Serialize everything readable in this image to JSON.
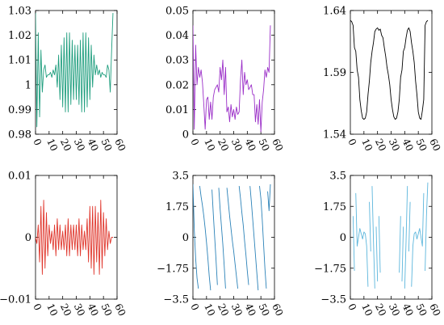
{
  "chart_data": [
    {
      "type": "line",
      "xlim": [
        0,
        60
      ],
      "ylim": [
        0.98,
        1.03
      ],
      "yticks": [
        "0.98",
        "0.99",
        "1",
        "1.01",
        "1.02",
        "1.03"
      ],
      "xticks": [
        "0",
        "10",
        "20",
        "30",
        "40",
        "50",
        "60"
      ],
      "series": [
        {
          "color": "#1f9e7e",
          "x": [
            0,
            1,
            2,
            3,
            4,
            5,
            6,
            7,
            8,
            9,
            10,
            11,
            12,
            13,
            14,
            15,
            16,
            17,
            18,
            19,
            20,
            21,
            22,
            23,
            24,
            25,
            26,
            27,
            28,
            29,
            30,
            31,
            32,
            33,
            34,
            35,
            36,
            37,
            38,
            39,
            40,
            41,
            42,
            43,
            44,
            45,
            46,
            47,
            48,
            49,
            50,
            51,
            52,
            53,
            54,
            55,
            56,
            57
          ],
          "values": [
            1.029,
            0.983,
            1.021,
            0.987,
            1.014,
            0.997,
            1.006,
            1.008,
            1.003,
            1.004,
            1.004,
            1.005,
            1.003,
            1.006,
            1.004,
            1.008,
            0.999,
            1.012,
            0.994,
            1.016,
            0.991,
            1.019,
            0.989,
            1.021,
            0.989,
            1.021,
            0.992,
            1.018,
            0.994,
            1.016,
            0.994,
            1.016,
            0.992,
            1.018,
            0.989,
            1.021,
            0.989,
            1.021,
            0.991,
            1.019,
            0.994,
            1.016,
            0.999,
            1.012,
            1.004,
            1.008,
            1.004,
            1.006,
            1.003,
            1.005,
            1.004,
            1.004,
            1.003,
            1.008,
            1.006,
            0.997,
            1.014,
            1.029
          ]
        }
      ]
    },
    {
      "type": "line",
      "xlim": [
        0,
        60
      ],
      "ylim": [
        0,
        0.05
      ],
      "yticks": [
        "0",
        "0.01",
        "0.02",
        "0.03",
        "0.04",
        "0.05"
      ],
      "xticks": [
        "0",
        "10",
        "20",
        "30",
        "40",
        "50",
        "60"
      ],
      "series": [
        {
          "color": "#9b2fc8",
          "x": [
            0,
            1,
            2,
            3,
            4,
            5,
            6,
            7,
            8,
            9,
            10,
            11,
            12,
            13,
            14,
            15,
            16,
            17,
            18,
            19,
            20,
            21,
            22,
            23,
            24,
            25,
            26,
            27,
            28,
            29,
            30,
            31,
            32,
            33,
            34,
            35,
            36,
            37,
            38,
            39,
            40,
            41,
            42,
            43,
            44,
            45,
            46,
            47,
            48,
            49,
            50,
            51,
            52,
            53,
            54,
            55,
            56,
            57
          ],
          "values": [
            0.044,
            0.002,
            0.036,
            0.02,
            0.027,
            0.023,
            0.026,
            0.021,
            0.012,
            0.002,
            0.014,
            0.015,
            0.006,
            0.013,
            0.006,
            0.015,
            0.018,
            0.019,
            0.02,
            0.017,
            0.027,
            0.022,
            0.03,
            0.016,
            0.027,
            0.009,
            0.011,
            0.005,
            0.012,
            0.007,
            0.01,
            0.006,
            0.011,
            0.008,
            0.009,
            0.022,
            0.03,
            0.016,
            0.025,
            0.02,
            0.022,
            0.018,
            0.019,
            0.02,
            0.016,
            0.016,
            0.005,
            0.012,
            0.004,
            0.014,
            0.001,
            0.013,
            0.018,
            0.026,
            0.023,
            0.027,
            0.025,
            0.044
          ]
        }
      ]
    },
    {
      "type": "line",
      "xlim": [
        0,
        60
      ],
      "ylim": [
        1.54,
        1.64
      ],
      "yticks": [
        "1.54",
        "1.59",
        "1.64"
      ],
      "xticks": [
        "0",
        "10",
        "20",
        "30",
        "40",
        "50",
        "60"
      ],
      "series": [
        {
          "color": "#000000",
          "x": [
            0,
            1,
            2,
            3,
            4,
            5,
            6,
            7,
            8,
            9,
            10,
            11,
            12,
            13,
            14,
            15,
            16,
            17,
            18,
            19,
            20,
            21,
            22,
            23,
            24,
            25,
            26,
            27,
            28,
            29,
            30,
            31,
            32,
            33,
            34,
            35,
            36,
            37,
            38,
            39,
            40,
            41,
            42,
            43,
            44,
            45,
            46,
            47,
            48,
            49,
            50,
            51,
            52,
            53,
            54,
            55,
            56,
            57
          ],
          "values": [
            1.632,
            1.631,
            1.628,
            1.61,
            1.607,
            1.592,
            1.586,
            1.568,
            1.559,
            1.553,
            1.552,
            1.553,
            1.558,
            1.572,
            1.583,
            1.598,
            1.607,
            1.614,
            1.623,
            1.625,
            1.626,
            1.624,
            1.625,
            1.62,
            1.618,
            1.61,
            1.603,
            1.594,
            1.588,
            1.58,
            1.568,
            1.56,
            1.554,
            1.552,
            1.553,
            1.558,
            1.568,
            1.586,
            1.592,
            1.607,
            1.61,
            1.618,
            1.624,
            1.626,
            1.623,
            1.614,
            1.607,
            1.598,
            1.583,
            1.572,
            1.558,
            1.553,
            1.552,
            1.559,
            1.568,
            1.628,
            1.631,
            1.632
          ]
        }
      ]
    },
    {
      "type": "line",
      "xlim": [
        0,
        60
      ],
      "ylim": [
        -0.01,
        0.01
      ],
      "yticks": [
        "−0.01",
        "0",
        "0.01"
      ],
      "xticks": [
        "0",
        "10",
        "20",
        "30",
        "40",
        "50",
        "60"
      ],
      "series": [
        {
          "color": "#e0362c",
          "x": [
            0,
            1,
            2,
            3,
            4,
            5,
            6,
            7,
            8,
            9,
            10,
            11,
            12,
            13,
            14,
            15,
            16,
            17,
            18,
            19,
            20,
            21,
            22,
            23,
            24,
            25,
            26,
            27,
            28,
            29,
            30,
            31,
            32,
            33,
            34,
            35,
            36,
            37,
            38,
            39,
            40,
            41,
            42,
            43,
            44,
            45,
            46,
            47,
            48,
            49,
            50,
            51,
            52,
            53,
            54,
            55,
            56,
            57
          ],
          "values": [
            0,
            -0.001,
            0.002,
            -0.004,
            0.005,
            -0.006,
            0.006,
            -0.005,
            0.004,
            -0.003,
            0.002,
            -0.001,
            0.001,
            -0.002,
            0.002,
            -0.003,
            0.003,
            -0.002,
            0.002,
            -0.002,
            0.001,
            -0.002,
            0.002,
            -0.003,
            0.003,
            -0.003,
            0.002,
            -0.002,
            0.002,
            -0.002,
            0.002,
            -0.003,
            0.003,
            -0.003,
            0.002,
            -0.002,
            0.001,
            -0.002,
            0.003,
            -0.004,
            0.005,
            -0.005,
            0.005,
            -0.006,
            0.005,
            -0.004,
            0.004,
            -0.006,
            0.006,
            -0.005,
            0.004,
            -0.003,
            0.003,
            -0.002,
            0.001,
            -0.001,
            0,
            0
          ]
        }
      ]
    },
    {
      "type": "line",
      "xlim": [
        0,
        60
      ],
      "ylim": [
        -3.5,
        3.5
      ],
      "yticks": [
        "−3.5",
        "−1.75",
        "0",
        "1.75",
        "3.5"
      ],
      "xticks": [
        "0",
        "10",
        "20",
        "30",
        "40",
        "50",
        "60"
      ],
      "wrap": [
        -3.1,
        3.1
      ],
      "series": [
        {
          "color": "#2b82b8",
          "x": [
            0,
            1,
            2,
            3,
            4,
            5,
            6,
            7,
            8,
            9,
            10,
            11,
            12,
            13,
            14,
            15,
            16,
            17,
            18,
            19,
            20,
            21,
            22,
            23,
            24,
            25,
            26,
            27,
            28,
            29,
            30,
            31,
            32,
            33,
            34,
            35,
            36,
            37,
            38,
            39,
            40,
            41,
            42,
            43,
            44,
            45,
            46,
            47,
            48,
            49,
            50,
            51,
            52,
            53,
            54,
            55,
            56,
            57
          ],
          "values": [
            3.0,
            0.4,
            -1.2,
            -2.3,
            -2.9,
            2.9,
            2.3,
            1.8,
            1.2,
            0.5,
            -0.3,
            -1.2,
            -2.2,
            -3.0,
            2.7,
            1.3,
            0.0,
            -1.3,
            -2.7,
            2.8,
            1.6,
            0.6,
            -0.4,
            -1.6,
            -2.9,
            2.8,
            2.0,
            1.2,
            0.5,
            -0.2,
            -0.8,
            -1.5,
            -2.2,
            -2.9,
            2.9,
            2.2,
            1.4,
            0.7,
            -0.2,
            -1.0,
            -1.9,
            -2.7,
            2.9,
            2.0,
            1.0,
            0.0,
            -1.0,
            -2.0,
            -3.0,
            2.9,
            2.2,
            1.0,
            -0.4,
            -1.8,
            -2.9,
            2.6,
            1.5,
            3.0
          ]
        }
      ]
    },
    {
      "type": "line",
      "xlim": [
        0,
        60
      ],
      "ylim": [
        -3.5,
        3.5
      ],
      "yticks": [
        "−3.5",
        "−1.75",
        "0",
        "1.75",
        "3.5"
      ],
      "xticks": [
        "0",
        "10",
        "20",
        "30",
        "40",
        "50",
        "60"
      ],
      "wrap": [
        -3.1,
        3.1
      ],
      "series": [
        {
          "color": "#5cb6dc",
          "x": [
            0,
            1,
            2,
            3,
            4,
            5,
            6,
            7,
            8,
            9,
            10,
            11,
            12,
            13,
            14,
            15,
            16,
            17,
            18,
            19,
            20,
            21,
            22,
            23,
            24,
            25,
            26,
            27,
            28,
            29,
            30,
            31,
            32,
            33,
            34,
            35,
            36,
            37,
            38,
            39,
            40,
            41,
            42,
            43,
            44,
            45,
            46,
            47,
            48,
            49,
            50,
            51,
            52,
            53,
            54,
            55,
            56,
            57
          ],
          "values": [
            3.1,
            -2.4,
            1.2,
            -1.9,
            2.5,
            -0.5,
            0.0,
            0.5,
            0.2,
            -0.1,
            0.3,
            0.2,
            -0.5,
            -2.8,
            2.0,
            -0.8,
            2.9,
            -0.2,
            -2.9,
            0.6,
            -2.5,
            1.2,
            -2.0,
            1.8,
            -1.6,
            2.3,
            -1.2,
            2.8,
            -0.7,
            3.0,
            -0.7,
            2.8,
            -1.2,
            2.3,
            -1.6,
            1.8,
            -2.0,
            1.2,
            -2.5,
            0.6,
            -2.9,
            -0.2,
            2.9,
            -0.8,
            2.0,
            -2.8,
            -0.5,
            0.2,
            0.3,
            -0.1,
            0.2,
            0.5,
            0.0,
            -0.5,
            2.5,
            -1.9,
            1.2,
            3.1
          ]
        }
      ]
    }
  ]
}
